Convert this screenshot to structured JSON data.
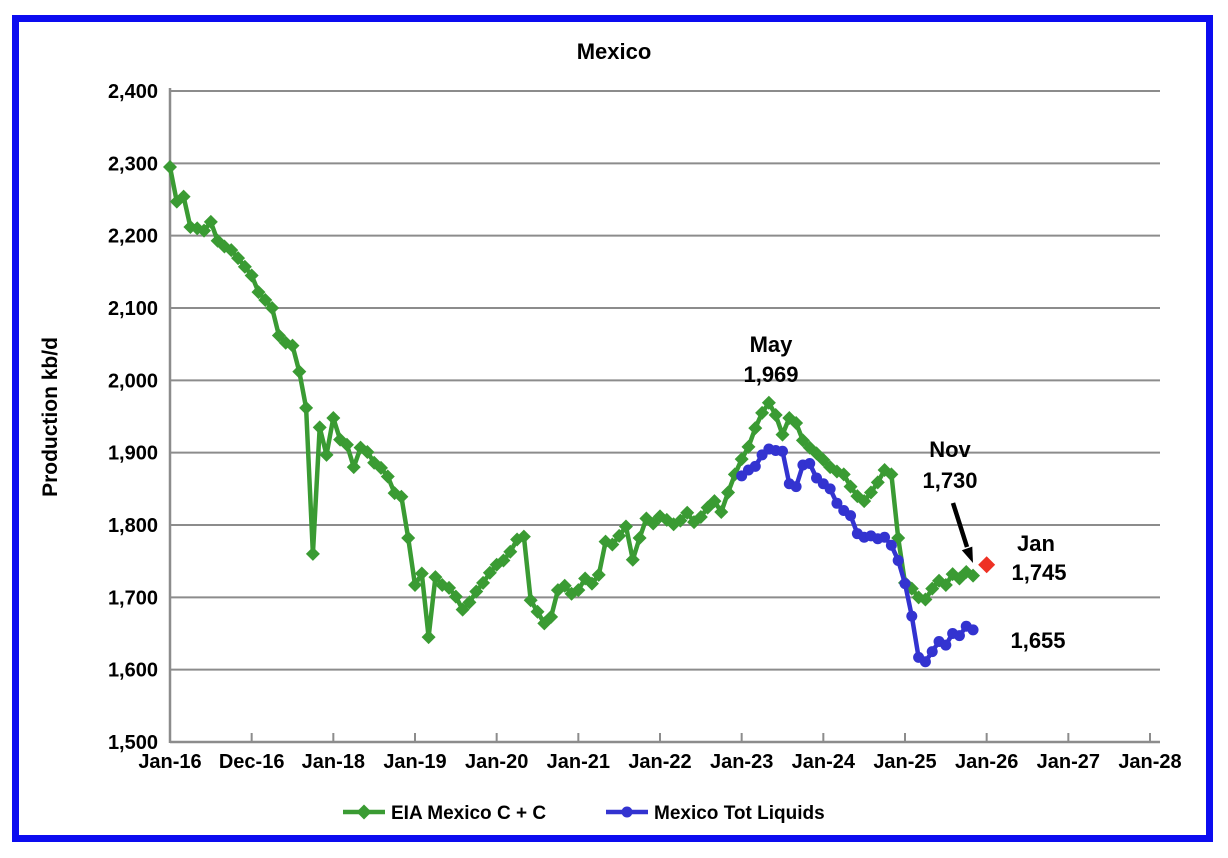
{
  "frame": {
    "border_color": "#0c0cf0"
  },
  "chart_data": {
    "type": "line",
    "title": "Mexico",
    "ylabel": "Production kb/d",
    "ylim": [
      1500,
      2400
    ],
    "ytick_step": 100,
    "ytick_labels": [
      "1,500",
      "1,600",
      "1,700",
      "1,800",
      "1,900",
      "2,000",
      "2,100",
      "2,200",
      "2,300",
      "2,400"
    ],
    "xtick_labels": [
      "Jan-16",
      "Dec-16",
      "Jan-18",
      "Jan-19",
      "Jan-20",
      "Jan-21",
      "Jan-22",
      "Jan-23",
      "Jan-24",
      "Jan-25",
      "Jan-26",
      "Jan-27",
      "Jan-28"
    ],
    "x_axis_span_months": 144,
    "grid": true,
    "legend_position": "bottom",
    "axis_color": "#8c8c8c",
    "series": [
      {
        "name": "EIA Mexico C + C",
        "color": "#3a9b33",
        "marker": "diamond",
        "start_month": "2016-01",
        "month_offset": 0,
        "in_legend": true,
        "values": [
          2295,
          2247,
          2254,
          2212,
          2210,
          2207,
          2219,
          2193,
          2185,
          2180,
          2169,
          2157,
          2145,
          2122,
          2111,
          2100,
          2062,
          2052,
          2048,
          2012,
          1962,
          1760,
          1935,
          1897,
          1948,
          1918,
          1911,
          1880,
          1907,
          1901,
          1886,
          1879,
          1867,
          1844,
          1839,
          1782,
          1717,
          1733,
          1645,
          1728,
          1717,
          1713,
          1701,
          1683,
          1693,
          1708,
          1720,
          1734,
          1745,
          1751,
          1763,
          1780,
          1784,
          1696,
          1680,
          1664,
          1673,
          1710,
          1716,
          1705,
          1710,
          1726,
          1719,
          1731,
          1777,
          1773,
          1785,
          1798,
          1752,
          1782,
          1809,
          1802,
          1812,
          1807,
          1801,
          1806,
          1817,
          1804,
          1811,
          1824,
          1833,
          1818,
          1845,
          1870,
          1891,
          1908,
          1934,
          1955,
          1969,
          1952,
          1925,
          1948,
          1941,
          1917,
          1907,
          1899,
          1890,
          1880,
          1874,
          1870,
          1853,
          1840,
          1833,
          1845,
          1859,
          1876,
          1870,
          1782,
          1720,
          1712,
          1700,
          1697,
          1712,
          1723,
          1717,
          1732,
          1726,
          1735,
          1730
        ]
      },
      {
        "name": "Mexico Tot Liquids",
        "color": "#3333d0",
        "marker": "circle",
        "start_month": "2023-01",
        "month_offset": 84,
        "in_legend": true,
        "values": [
          1868,
          1876,
          1881,
          1897,
          1905,
          1903,
          1902,
          1857,
          1853,
          1883,
          1885,
          1865,
          1857,
          1850,
          1830,
          1820,
          1813,
          1788,
          1783,
          1785,
          1781,
          1783,
          1772,
          1751,
          1719,
          1674,
          1617,
          1611,
          1625,
          1639,
          1634,
          1650,
          1647,
          1660,
          1655
        ]
      },
      {
        "name": "Jan forecast point",
        "color": "#ee3124",
        "marker": "diamond",
        "start_month": "2026-01",
        "month_offset": 120,
        "in_legend": false,
        "values": [
          1745
        ]
      }
    ],
    "annotations": {
      "peak": {
        "line1": "May",
        "line2": "1,969",
        "color": "#000000",
        "points_to": "May-2023 EIA C+C peak"
      },
      "nov": {
        "line1": "Nov",
        "line2": "1,730",
        "color": "#3a9b33",
        "arrow": true,
        "points_to": "Nov-2025 EIA C+C"
      },
      "jan": {
        "line1": "Jan",
        "line2": "1,745",
        "color": "#ee3124",
        "points_to": "Jan-2026 forecast"
      },
      "liquids_end": {
        "line1": "1,655",
        "color": "#3333d0",
        "points_to": "Nov-2025 Tot Liquids"
      }
    }
  }
}
